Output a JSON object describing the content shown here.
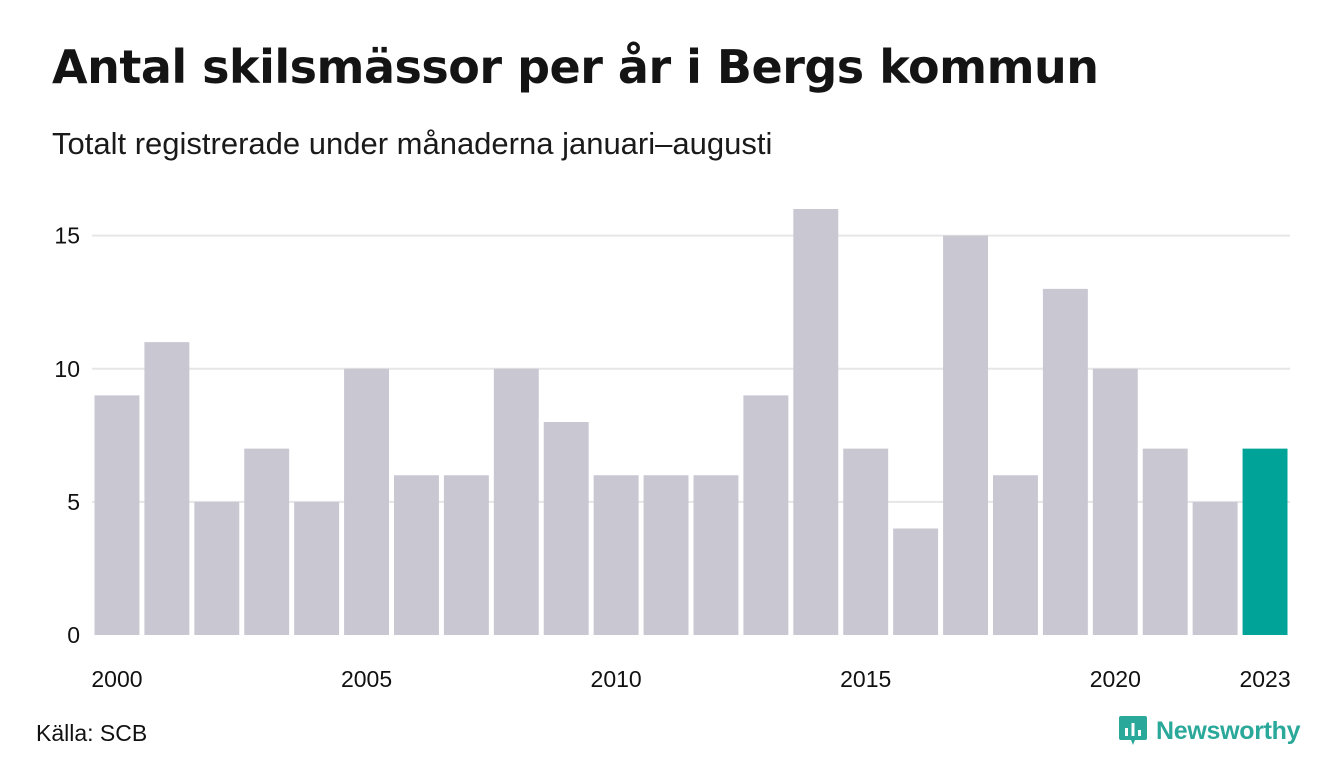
{
  "title": "Antal skilsmässor per år i Bergs kommun",
  "subtitle": "Totalt registrerade under månaderna januari–augusti",
  "source": "Källa: SCB",
  "brand": {
    "name": "Newsworthy",
    "icon": "newsworthy-logo-icon",
    "color": "#2aa89a"
  },
  "colors": {
    "bar": "#c8c7d2",
    "highlight": "#00a398",
    "grid": "#e6e6e6"
  },
  "chart_data": {
    "type": "bar",
    "title": "Antal skilsmässor per år i Bergs kommun",
    "subtitle": "Totalt registrerade under månaderna januari–augusti",
    "categories": [
      "2000",
      "2001",
      "2002",
      "2003",
      "2004",
      "2005",
      "2006",
      "2007",
      "2008",
      "2009",
      "2010",
      "2011",
      "2012",
      "2013",
      "2014",
      "2015",
      "2016",
      "2017",
      "2018",
      "2019",
      "2020",
      "2021",
      "2022",
      "2023"
    ],
    "values": [
      9,
      11,
      5,
      7,
      5,
      10,
      6,
      6,
      10,
      8,
      6,
      6,
      6,
      9,
      16,
      7,
      4,
      15,
      6,
      13,
      10,
      7,
      5,
      7
    ],
    "highlight_index": 23,
    "x_tick_labels": [
      "2000",
      "2005",
      "2010",
      "2015",
      "2020",
      "2023"
    ],
    "y_ticks": [
      0,
      5,
      10,
      15
    ],
    "ylim": [
      0,
      16
    ],
    "xlabel": "",
    "ylabel": "",
    "grid": true,
    "legend": "none"
  }
}
